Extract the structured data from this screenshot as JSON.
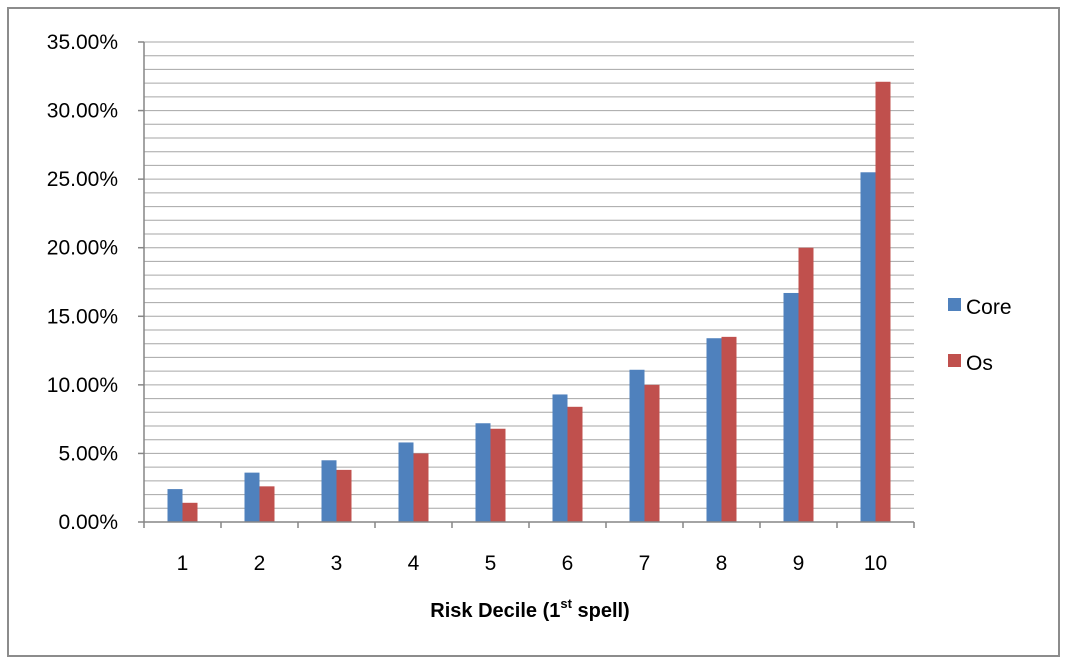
{
  "chart_data": {
    "type": "bar",
    "categories": [
      "1",
      "2",
      "3",
      "4",
      "5",
      "6",
      "7",
      "8",
      "9",
      "10"
    ],
    "series": [
      {
        "name": "Core",
        "color": "#4f81bd",
        "values": [
          2.4,
          3.6,
          4.5,
          5.8,
          7.2,
          9.3,
          11.1,
          13.4,
          16.7,
          25.5
        ]
      },
      {
        "name": "Os",
        "color": "#c0504d",
        "values": [
          1.4,
          2.6,
          3.8,
          5.0,
          6.8,
          8.4,
          10.0,
          13.5,
          20.0,
          32.1
        ]
      }
    ],
    "xlabel": {
      "main": "Risk Decile (1",
      "sup": "st",
      "end": " spell)"
    },
    "ylabel": "",
    "ylim": [
      0,
      35
    ],
    "yticks": [
      "0.00%",
      "5.00%",
      "10.00%",
      "15.00%",
      "20.00%",
      "25.00%",
      "30.00%",
      "35.00%"
    ],
    "grid": true,
    "legend": "right",
    "colors": {
      "border": "#8c8c8c",
      "gridline": "#a6a6a6"
    }
  }
}
